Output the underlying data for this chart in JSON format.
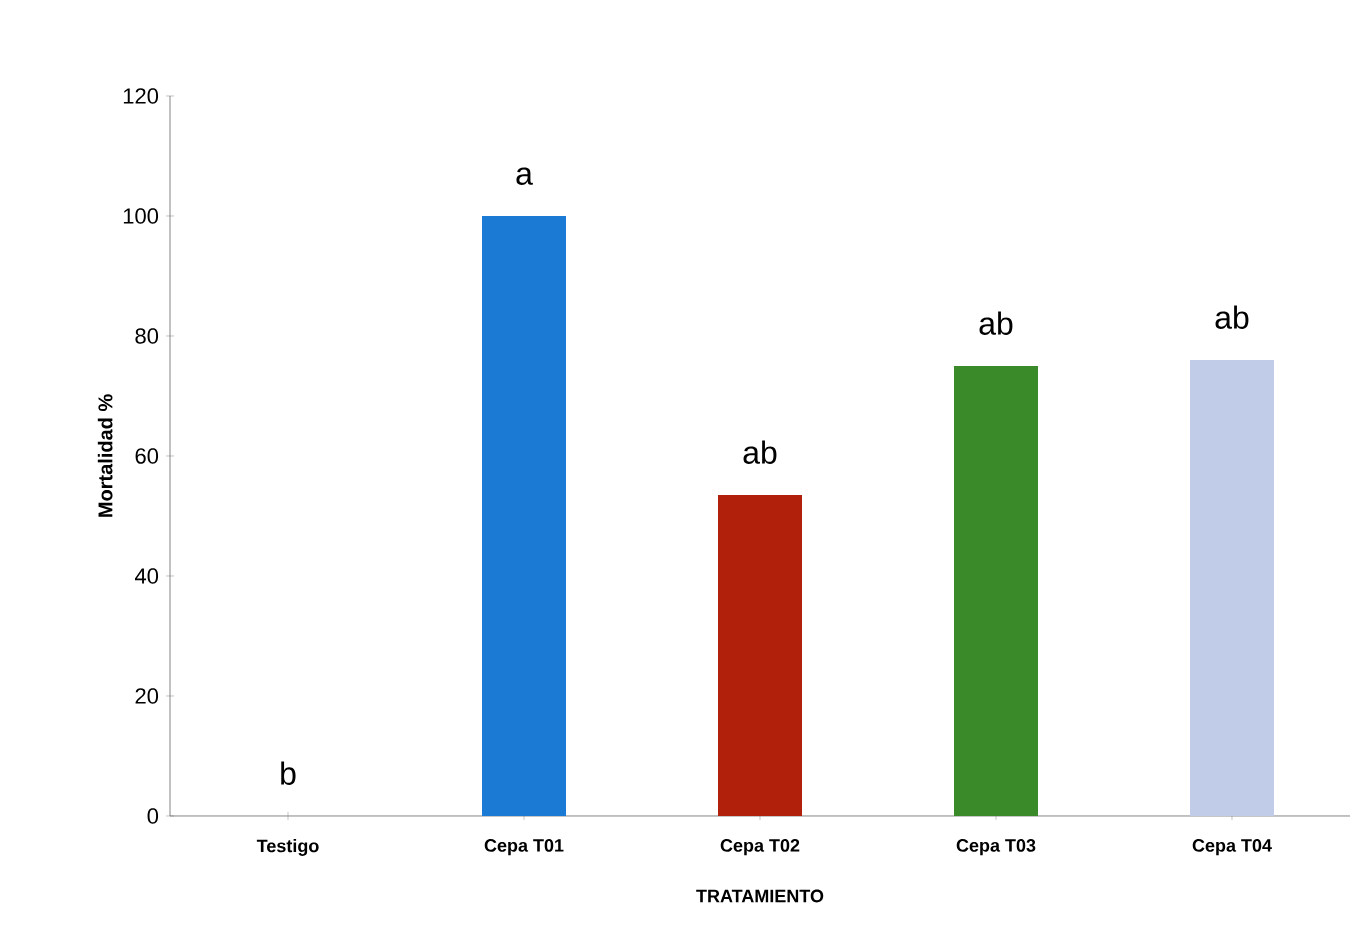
{
  "chart_data": {
    "type": "bar",
    "xlabel": "TRATAMIENTO",
    "ylabel": "Mortalidad %",
    "categories": [
      "Testigo",
      "Cepa T01",
      "Cepa T02",
      "Cepa T03",
      "Cepa T04"
    ],
    "values": [
      0,
      100,
      53.5,
      75,
      76
    ],
    "colors": [
      "#1a6fd0",
      "#1a7ad4",
      "#b0200a",
      "#3a8a2a",
      "#c0cce8"
    ],
    "ylim": [
      0,
      120
    ],
    "yticks": [
      0,
      20,
      40,
      60,
      80,
      100,
      120
    ],
    "annotations": [
      "b",
      "a",
      "ab",
      "ab",
      "ab"
    ],
    "grid": false
  }
}
